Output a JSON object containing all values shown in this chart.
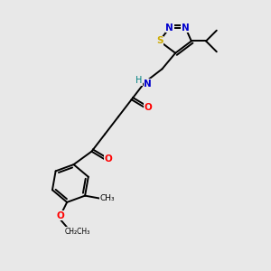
{
  "bg_color": "#e8e8e8",
  "atom_colors": {
    "C": "#000000",
    "N": "#0000cd",
    "O": "#ff0000",
    "S": "#ccaa00",
    "H": "#008080"
  },
  "bond_color": "#000000",
  "lw": 1.4,
  "xlim": [
    0,
    10
  ],
  "ylim": [
    0,
    10
  ]
}
